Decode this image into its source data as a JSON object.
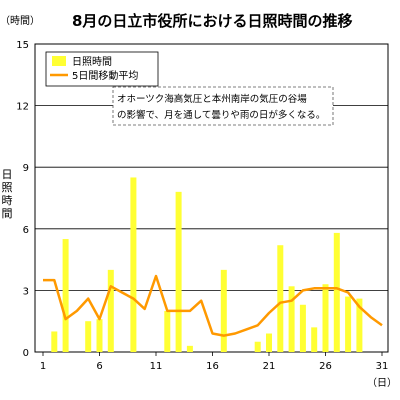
{
  "chart_data": {
    "type": "bar",
    "title": "8月の日立市役所における日照時間の推移",
    "y_unit": "（時間）",
    "x_unit": "（日）",
    "ylabel": "日照時間",
    "ylim": [
      0,
      15
    ],
    "yticks": [
      0,
      3,
      6,
      9,
      12,
      15
    ],
    "xlim": [
      1,
      31
    ],
    "xticks": [
      1,
      6,
      11,
      16,
      21,
      26,
      31
    ],
    "grid": "horizontal",
    "legend_position": "top-left",
    "colors": {
      "bar": "#ffff33",
      "line": "#ff9900",
      "grid": "#000000"
    },
    "series": [
      {
        "name": "日照時間",
        "type": "bar",
        "x": [
          1,
          2,
          3,
          4,
          5,
          6,
          7,
          8,
          9,
          10,
          11,
          12,
          13,
          14,
          15,
          16,
          17,
          18,
          19,
          20,
          21,
          22,
          23,
          24,
          25,
          26,
          27,
          28,
          29,
          30,
          31
        ],
        "values": [
          0,
          1.0,
          5.5,
          0,
          1.5,
          1.6,
          4.0,
          0,
          8.5,
          0,
          0,
          2.0,
          7.8,
          0.3,
          0,
          0,
          4.0,
          0,
          0,
          0.5,
          0.9,
          5.2,
          3.2,
          2.3,
          1.2,
          3.3,
          5.8,
          2.7,
          2.6,
          0,
          0
        ]
      },
      {
        "name": "5日間移動平均",
        "type": "line",
        "x": [
          1,
          2,
          3,
          4,
          5,
          6,
          7,
          8,
          9,
          10,
          11,
          12,
          13,
          14,
          15,
          16,
          17,
          18,
          19,
          20,
          21,
          22,
          23,
          24,
          25,
          26,
          27,
          28,
          29,
          30,
          31
        ],
        "values": [
          3.5,
          3.5,
          1.6,
          2.0,
          2.6,
          1.6,
          3.2,
          2.9,
          2.6,
          2.1,
          3.7,
          2.0,
          2.0,
          2.0,
          2.5,
          0.9,
          0.8,
          0.9,
          1.1,
          1.3,
          1.9,
          2.4,
          2.5,
          3.0,
          3.1,
          3.1,
          3.1,
          2.9,
          2.2,
          1.7,
          1.3
        ]
      }
    ],
    "annotation": [
      "オホーツク海高気圧と本州南岸の気圧の谷場",
      "の影響で、月を通して曇りや雨の日が多くなる。"
    ]
  }
}
